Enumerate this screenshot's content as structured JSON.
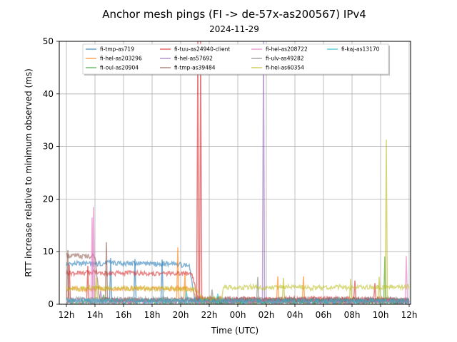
{
  "chart_data": {
    "type": "line",
    "title": "Anchor mesh pings (FI -> de-57x-as200567) IPv4",
    "subtitle": "2024-11-29",
    "xlabel": "Time (UTC)",
    "ylabel": "RTT increase relative to minimum observed (ms)",
    "xlim": [
      11.5,
      36.1
    ],
    "ylim": [
      0,
      50
    ],
    "x_ticks": [
      12,
      14,
      16,
      18,
      20,
      22,
      24,
      26,
      28,
      30,
      32,
      34,
      36
    ],
    "x_tick_labels": [
      "12h",
      "14h",
      "16h",
      "18h",
      "20h",
      "22h",
      "00h",
      "02h",
      "04h",
      "06h",
      "08h",
      "10h",
      "12h"
    ],
    "y_ticks": [
      0,
      10,
      20,
      30,
      40,
      50
    ],
    "grid": true,
    "legend_position": "top-center",
    "series": [
      {
        "name": "fi-tmp-as719",
        "color": "#1f77b4",
        "points": [
          [
            12,
            7.6
          ],
          [
            13,
            7.8
          ],
          [
            14,
            7.6
          ],
          [
            15,
            7.9
          ],
          [
            16,
            7.7
          ],
          [
            17,
            7.8
          ],
          [
            18,
            7.6
          ],
          [
            19,
            7.7
          ],
          [
            20,
            7.5
          ],
          [
            20.6,
            7.4
          ],
          [
            21,
            1.0
          ],
          [
            22,
            0.6
          ],
          [
            24,
            0.5
          ],
          [
            26,
            0.6
          ],
          [
            28,
            0.5
          ],
          [
            30,
            0.6
          ],
          [
            32,
            0.5
          ],
          [
            34,
            0.6
          ],
          [
            36,
            0.5
          ]
        ],
        "spikes": [
          [
            15.1,
            8.8
          ],
          [
            16.8,
            8.6
          ],
          [
            18.7,
            8.5
          ]
        ]
      },
      {
        "name": "fi-hel-as203296",
        "color": "#ff7f0e",
        "points": [
          [
            12,
            2.9
          ],
          [
            14,
            2.9
          ],
          [
            16,
            3.0
          ],
          [
            18,
            2.9
          ],
          [
            20,
            3.0
          ],
          [
            20.8,
            2.9
          ],
          [
            21.2,
            0.6
          ],
          [
            24,
            0.6
          ],
          [
            28,
            0.6
          ],
          [
            32,
            0.6
          ],
          [
            36,
            0.6
          ]
        ],
        "spikes": [
          [
            19.8,
            10.8
          ],
          [
            20.3,
            6.0
          ],
          [
            26.8,
            5.3
          ],
          [
            28.6,
            5.3
          ]
        ]
      },
      {
        "name": "fi-oul-as20904",
        "color": "#2ca02c",
        "points": [
          [
            12,
            0.4
          ],
          [
            16,
            0.4
          ],
          [
            20,
            0.4
          ],
          [
            24,
            0.4
          ],
          [
            28,
            0.4
          ],
          [
            32,
            0.4
          ],
          [
            36,
            0.4
          ]
        ],
        "spikes": [
          [
            34.3,
            9.1
          ],
          [
            14.6,
            1.8
          ]
        ]
      },
      {
        "name": "fi-tuu-as24940-client",
        "color": "#d62728",
        "points": [
          [
            12,
            6.0
          ],
          [
            13,
            5.9
          ],
          [
            14,
            6.1
          ],
          [
            15,
            5.8
          ],
          [
            16,
            6.0
          ],
          [
            17,
            5.9
          ],
          [
            18,
            5.8
          ],
          [
            19,
            5.9
          ],
          [
            20,
            5.8
          ],
          [
            20.8,
            5.7
          ],
          [
            21.2,
            1.0
          ],
          [
            24,
            1.0
          ],
          [
            28,
            1.0
          ],
          [
            32,
            1.0
          ],
          [
            36,
            0.8
          ]
        ],
        "spikes": [
          [
            21.2,
            50
          ],
          [
            21.4,
            50
          ],
          [
            12.2,
            7.5
          ],
          [
            13.5,
            7.3
          ],
          [
            32.2,
            4.5
          ],
          [
            33.6,
            4.0
          ]
        ]
      },
      {
        "name": "fi-hel-as57692",
        "color": "#9467bd",
        "points": [
          [
            12,
            0.7
          ],
          [
            16,
            0.7
          ],
          [
            20,
            0.7
          ],
          [
            24,
            0.7
          ],
          [
            28,
            0.7
          ],
          [
            32,
            0.7
          ],
          [
            36,
            0.7
          ]
        ],
        "spikes": [
          [
            25.8,
            50
          ],
          [
            14.4,
            2.5
          ]
        ]
      },
      {
        "name": "fi-tmp-as39484",
        "color": "#8c564b",
        "points": [
          [
            12,
            9.3
          ],
          [
            13,
            9.1
          ],
          [
            14,
            9.2
          ],
          [
            14.3,
            1.0
          ],
          [
            16,
            0.8
          ],
          [
            20,
            0.8
          ],
          [
            24,
            0.8
          ],
          [
            28,
            0.8
          ],
          [
            32,
            0.8
          ],
          [
            36,
            0.8
          ]
        ],
        "spikes": [
          [
            14.8,
            11.8
          ],
          [
            12.1,
            10.3
          ]
        ]
      },
      {
        "name": "fi-hel-as208722",
        "color": "#e377c2",
        "points": [
          [
            12,
            0.5
          ],
          [
            16,
            0.5
          ],
          [
            20,
            0.5
          ],
          [
            24,
            0.5
          ],
          [
            28,
            0.5
          ],
          [
            32,
            0.5
          ],
          [
            36,
            0.5
          ]
        ],
        "spikes": [
          [
            13.9,
            18.5
          ],
          [
            13.8,
            16.5
          ],
          [
            35.8,
            9.2
          ]
        ]
      },
      {
        "name": "fi-ulv-as49282",
        "color": "#7f7f7f",
        "points": [
          [
            12,
            0.9
          ],
          [
            16,
            0.9
          ],
          [
            20,
            0.9
          ],
          [
            24,
            0.9
          ],
          [
            28,
            0.9
          ],
          [
            32,
            0.9
          ],
          [
            36,
            0.9
          ]
        ],
        "spikes": [
          [
            25.4,
            5.2
          ],
          [
            22.2,
            2.8
          ]
        ]
      },
      {
        "name": "fi-hel-as60354",
        "color": "#bcbd22",
        "points": [
          [
            12,
            3.0
          ],
          [
            13,
            2.9
          ],
          [
            14,
            3.2
          ],
          [
            15,
            2.9
          ],
          [
            16,
            3.0
          ],
          [
            17,
            3.1
          ],
          [
            18,
            2.9
          ],
          [
            19,
            3.0
          ],
          [
            20,
            2.9
          ],
          [
            21,
            2.9
          ],
          [
            21.5,
            1.0
          ],
          [
            22.9,
            1.0
          ],
          [
            23,
            3.2
          ],
          [
            24,
            3.1
          ],
          [
            25,
            3.3
          ],
          [
            26,
            3.0
          ],
          [
            27,
            3.2
          ],
          [
            28,
            3.4
          ],
          [
            29,
            3.1
          ],
          [
            30,
            3.2
          ],
          [
            31,
            3.3
          ],
          [
            32,
            3.1
          ],
          [
            33,
            3.3
          ],
          [
            34,
            3.2
          ],
          [
            35,
            3.3
          ],
          [
            36,
            3.4
          ]
        ],
        "spikes": [
          [
            34.4,
            31.3
          ],
          [
            27.2,
            5.0
          ],
          [
            31.9,
            4.8
          ],
          [
            33.9,
            5.2
          ],
          [
            14.1,
            5.0
          ]
        ]
      },
      {
        "name": "fi-kaj-as13170",
        "color": "#17becf",
        "points": [
          [
            12,
            0.6
          ],
          [
            16,
            0.6
          ],
          [
            20,
            0.6
          ],
          [
            24,
            0.6
          ],
          [
            28,
            0.6
          ],
          [
            32,
            0.6
          ],
          [
            36,
            0.6
          ]
        ],
        "spikes": [
          [
            20.4,
            2.5
          ],
          [
            22.6,
            2.0
          ]
        ]
      }
    ]
  }
}
